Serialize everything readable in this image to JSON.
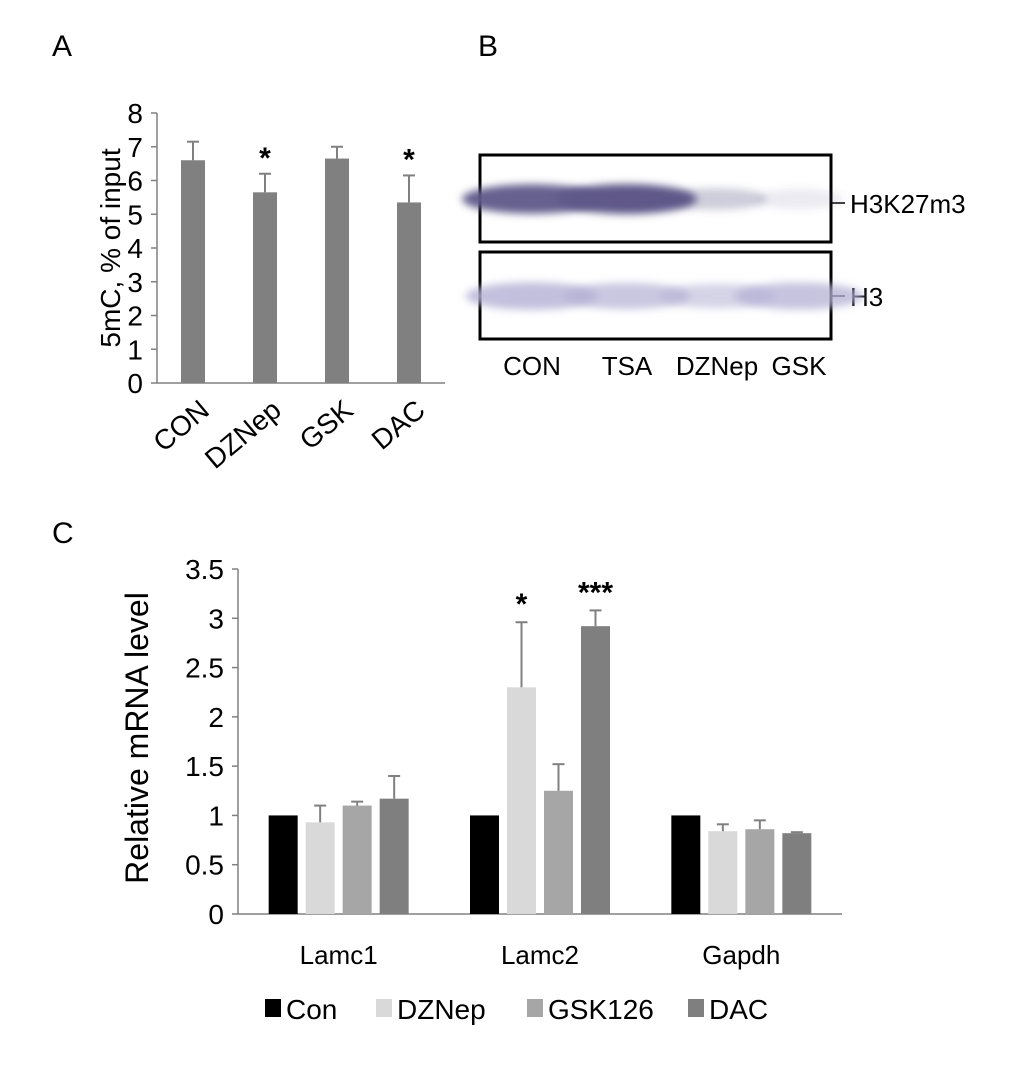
{
  "panels": {
    "a": {
      "label": "A"
    },
    "b": {
      "label": "B"
    },
    "c": {
      "label": "C"
    }
  },
  "colors": {
    "axis": "#808080",
    "bar_a": "#808080",
    "blot_border": "#000000",
    "band_h3k27m3": "#5e5889",
    "band_h3": "#b3b0d4",
    "con": "#000000",
    "dznep": "#d9d9d9",
    "gsk126": "#a6a6a6",
    "dac": "#7f7f7f"
  },
  "blot": {
    "lanes": [
      "CON",
      "TSA",
      "DZNep",
      "GSK"
    ],
    "rows": [
      {
        "label": "H3K27m3",
        "intensities": [
          0.95,
          1.0,
          0.3,
          0.12
        ]
      },
      {
        "label": "H3",
        "intensities": [
          0.8,
          0.7,
          0.55,
          0.75
        ]
      }
    ]
  },
  "chart_data": [
    {
      "type": "bar",
      "panel": "A",
      "categories": [
        "CON",
        "DZNep",
        "GSK",
        "DAC"
      ],
      "values": [
        6.6,
        5.65,
        6.65,
        5.35
      ],
      "errors": [
        0.55,
        0.55,
        0.35,
        0.8
      ],
      "annotations": [
        "",
        "*",
        "",
        "*"
      ],
      "ylabel": "5mC, % of input",
      "xlabel": "",
      "ylim": [
        0,
        8
      ],
      "yticks": [
        "0",
        "1",
        "2",
        "3",
        "4",
        "5",
        "6",
        "7",
        "8"
      ],
      "legend": "none",
      "grid": false
    },
    {
      "type": "bar",
      "panel": "C",
      "categories": [
        "Lamc1",
        "Lamc2",
        "Gapdh"
      ],
      "series": [
        {
          "name": "Con",
          "values": [
            1.0,
            1.0,
            1.0
          ],
          "errors": [
            0,
            0,
            0
          ]
        },
        {
          "name": "DZNep",
          "values": [
            0.93,
            2.3,
            0.84
          ],
          "errors": [
            0.17,
            0.66,
            0.07
          ]
        },
        {
          "name": "GSK126",
          "values": [
            1.1,
            1.25,
            0.86
          ],
          "errors": [
            0.04,
            0.27,
            0.09
          ]
        },
        {
          "name": "DAC",
          "values": [
            1.17,
            2.92,
            0.82
          ],
          "errors": [
            0.23,
            0.16,
            0.01
          ]
        }
      ],
      "annotations": [
        {
          "category": "Lamc2",
          "series": "DZNep",
          "text": "*"
        },
        {
          "category": "Lamc2",
          "series": "DAC",
          "text": "***"
        }
      ],
      "ylabel": "Relative mRNA level",
      "xlabel": "",
      "ylim": [
        0,
        3.5
      ],
      "yticks": [
        "0",
        "0.5",
        "1",
        "1.5",
        "2",
        "2.5",
        "3",
        "3.5"
      ],
      "legend": "bottom",
      "grid": false
    }
  ]
}
